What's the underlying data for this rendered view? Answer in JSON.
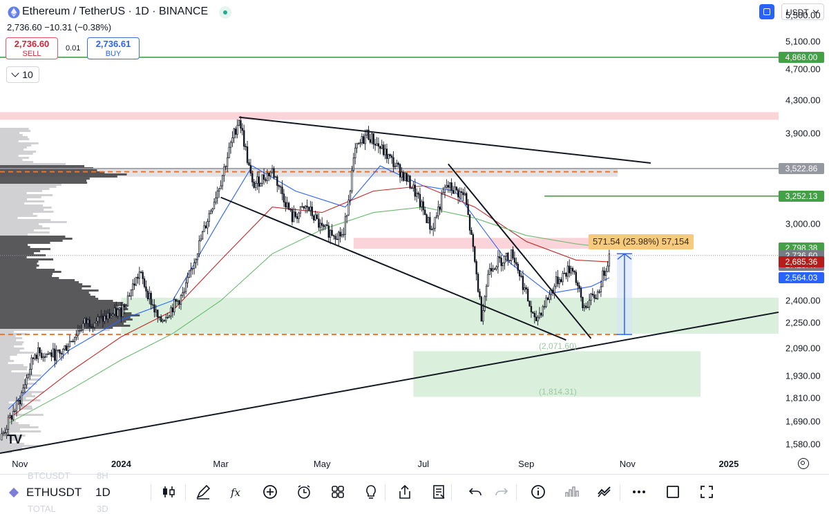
{
  "header": {
    "symbol_title": "Ethereum / TetherUS · 1D · BINANCE",
    "change": "2,736.60  −10.31 (−0.38%)",
    "sell_price": "2,736.60",
    "sell_label": "SELL",
    "spread": "0.01",
    "buy_price": "2,736.61",
    "buy_label": "BUY",
    "indicator_count": "10",
    "currency": "USDT"
  },
  "colors": {
    "green_line": "#43a047",
    "gray_line": "#9598a1",
    "orange_dashed": "#e8762c",
    "price_up": "#26a69a",
    "current_price": "#787b86",
    "ema_red": "#c62828",
    "ema_blue": "#2962ff",
    "sma_green": "#66bb6a"
  },
  "chart_data": {
    "type": "candlestick",
    "symbol": "ETHUSDT",
    "interval": "1D",
    "exchange": "BINANCE",
    "y_axis": {
      "scale": "log",
      "range": [
        1540,
        5750
      ],
      "ticks": [
        5500,
        5100,
        4700,
        4300,
        3900,
        3522.86,
        3000,
        2400,
        2250,
        2090,
        1930,
        1810,
        1690,
        1580
      ],
      "tick_labels": [
        "5,500.00",
        "5,100.00",
        "4,700.00",
        "4,300.00",
        "3,900.00",
        "",
        "3,000.00",
        "2,400.00",
        "2,250.00",
        "2,090.00",
        "1,930.00",
        "1,810.00",
        "1,690.00",
        "1,580.00"
      ]
    },
    "x_axis": {
      "range": [
        "2023-10-20",
        "2025-01-31"
      ],
      "ticks": [
        {
          "date": "2023-11-01",
          "label": "Nov",
          "bold": false
        },
        {
          "date": "2024-01-01",
          "label": "2024",
          "bold": true
        },
        {
          "date": "2024-03-01",
          "label": "Mar",
          "bold": false
        },
        {
          "date": "2024-05-01",
          "label": "May",
          "bold": false
        },
        {
          "date": "2024-07-01",
          "label": "Jul",
          "bold": false
        },
        {
          "date": "2024-09-01",
          "label": "Sep",
          "bold": false
        },
        {
          "date": "2024-11-01",
          "label": "Nov",
          "bold": false
        },
        {
          "date": "2025-01-01",
          "label": "2025",
          "bold": true
        }
      ]
    },
    "price_path": [
      [
        "2023-10-20",
        1600
      ],
      [
        "2023-11-01",
        1800
      ],
      [
        "2023-11-10",
        2060
      ],
      [
        "2023-11-25",
        2050
      ],
      [
        "2023-12-10",
        2250
      ],
      [
        "2023-12-20",
        2270
      ],
      [
        "2024-01-01",
        2330
      ],
      [
        "2024-01-12",
        2600
      ],
      [
        "2024-01-24",
        2250
      ],
      [
        "2024-02-08",
        2450
      ],
      [
        "2024-02-20",
        2950
      ],
      [
        "2024-03-01",
        3400
      ],
      [
        "2024-03-12",
        4080
      ],
      [
        "2024-03-20",
        3350
      ],
      [
        "2024-04-01",
        3500
      ],
      [
        "2024-04-13",
        3050
      ],
      [
        "2024-04-22",
        3150
      ],
      [
        "2024-05-01",
        2950
      ],
      [
        "2024-05-14",
        2900
      ],
      [
        "2024-05-21",
        3700
      ],
      [
        "2024-05-28",
        3900
      ],
      [
        "2024-06-12",
        3600
      ],
      [
        "2024-06-24",
        3350
      ],
      [
        "2024-07-06",
        2950
      ],
      [
        "2024-07-15",
        3350
      ],
      [
        "2024-07-26",
        3250
      ],
      [
        "2024-08-05",
        2300
      ],
      [
        "2024-08-10",
        2650
      ],
      [
        "2024-08-24",
        2750
      ],
      [
        "2024-09-06",
        2250
      ],
      [
        "2024-09-20",
        2550
      ],
      [
        "2024-09-29",
        2650
      ],
      [
        "2024-10-05",
        2350
      ],
      [
        "2024-10-14",
        2450
      ],
      [
        "2024-10-21",
        2736.6
      ]
    ],
    "indicators": [
      {
        "type": "ema",
        "color": "#2962ff",
        "points": [
          [
            "2023-10-25",
            1750
          ],
          [
            "2023-12-01",
            2080
          ],
          [
            "2024-01-01",
            2270
          ],
          [
            "2024-02-01",
            2400
          ],
          [
            "2024-03-01",
            3050
          ],
          [
            "2024-03-20",
            3550
          ],
          [
            "2024-04-15",
            3300
          ],
          [
            "2024-05-15",
            3150
          ],
          [
            "2024-06-05",
            3550
          ],
          [
            "2024-07-01",
            3350
          ],
          [
            "2024-07-20",
            3300
          ],
          [
            "2024-08-20",
            2700
          ],
          [
            "2024-09-15",
            2450
          ],
          [
            "2024-10-10",
            2500
          ],
          [
            "2024-10-21",
            2564.03
          ]
        ]
      },
      {
        "type": "ema",
        "color": "#c62828",
        "points": [
          [
            "2023-10-25",
            1700
          ],
          [
            "2023-12-01",
            1950
          ],
          [
            "2024-01-01",
            2160
          ],
          [
            "2024-02-01",
            2330
          ],
          [
            "2024-03-01",
            2700
          ],
          [
            "2024-04-01",
            3150
          ],
          [
            "2024-05-01",
            3100
          ],
          [
            "2024-06-01",
            3300
          ],
          [
            "2024-07-01",
            3350
          ],
          [
            "2024-08-01",
            3150
          ],
          [
            "2024-09-01",
            2850
          ],
          [
            "2024-10-01",
            2700
          ],
          [
            "2024-10-21",
            2685.36
          ]
        ]
      },
      {
        "type": "sma",
        "color": "#66bb6a",
        "points": [
          [
            "2023-10-25",
            1680
          ],
          [
            "2023-12-01",
            1850
          ],
          [
            "2024-01-01",
            2020
          ],
          [
            "2024-02-01",
            2180
          ],
          [
            "2024-03-01",
            2400
          ],
          [
            "2024-04-01",
            2750
          ],
          [
            "2024-05-01",
            2950
          ],
          [
            "2024-06-01",
            3100
          ],
          [
            "2024-07-01",
            3150
          ],
          [
            "2024-08-01",
            3050
          ],
          [
            "2024-09-01",
            2900
          ],
          [
            "2024-10-01",
            2830
          ],
          [
            "2024-10-21",
            2798.38
          ]
        ]
      }
    ],
    "horizontal_lines": [
      {
        "price": 4868.0,
        "label": "4,868.00",
        "color": "#43a047",
        "start": "2023-10-20"
      },
      {
        "price": 3522.86,
        "label": "3,522.86",
        "color": "#9598a1",
        "start": "2023-10-20"
      },
      {
        "price": 3252.13,
        "label": "3,252.13",
        "color": "#43a047",
        "start": "2024-09-12"
      }
    ],
    "dashed_lines": [
      {
        "price": 3490,
        "color": "#e8762c",
        "from": "2023-10-20",
        "to": "2024-10-26"
      },
      {
        "price": 2175,
        "color": "#e8762c",
        "from": "2023-10-20",
        "to": "2024-10-26"
      }
    ],
    "zones": [
      {
        "from": "2023-10-20",
        "to": "2025-01-31",
        "high": 4150,
        "low": 4060,
        "color": "#f8c5cc"
      },
      {
        "from": "2023-10-20",
        "to": "2024-10-26",
        "high": 3520,
        "low": 3440,
        "color": "#d8d8dc"
      },
      {
        "from": "2024-05-20",
        "to": "2024-10-26",
        "high": 2880,
        "low": 2790,
        "color": "#f8c5cc"
      },
      {
        "from": "2024-01-01",
        "to": "2025-01-31",
        "high": 2420,
        "low": 2180,
        "color": "#cdebd0"
      },
      {
        "from": "2024-06-25",
        "to": "2024-12-15",
        "high": 2071.6,
        "low": 1814.31,
        "color": "#cdebd0"
      }
    ],
    "trendlines": [
      {
        "from": [
          "2024-03-12",
          4090
        ],
        "to": [
          "2024-11-15",
          3580
        ]
      },
      {
        "from": [
          "2024-03-01",
          3240
        ],
        "to": [
          "2024-09-25",
          2140
        ]
      },
      {
        "from": [
          "2024-07-16",
          3570
        ],
        "to": [
          "2024-10-10",
          2150
        ]
      },
      {
        "from": [
          "2023-10-20",
          1540
        ],
        "to": [
          "2025-01-31",
          2320
        ]
      }
    ],
    "measure": {
      "from": [
        "2024-10-26",
        2175
      ],
      "to": [
        "2024-10-26",
        2750
      ],
      "label": "571.54 (25.98%) 57,154"
    },
    "annotations": [
      {
        "date": "2024-09-20",
        "price": 2071.6,
        "text": "(2,071.60)"
      },
      {
        "date": "2024-09-20",
        "price": 1814.31,
        "text": "(1,814.31)"
      }
    ],
    "price_labels": [
      {
        "price": 4868.0,
        "text": "4,868.00",
        "color": "#43a047"
      },
      {
        "price": 3522.86,
        "text": "3,522.86",
        "color": "#9598a1"
      },
      {
        "price": 3252.13,
        "text": "3,252.13",
        "color": "#43a047"
      },
      {
        "price": 2798.38,
        "text": "2,798.38",
        "color": "#43a047"
      },
      {
        "price": 2736.6,
        "text": "2,736.60",
        "countdown": "17:29:47",
        "color": "#787b86"
      },
      {
        "price": 2685.36,
        "text": "2,685.36",
        "color": "#b71c1c"
      },
      {
        "price": 2564.03,
        "text": "2,564.03",
        "color": "#2962ff"
      }
    ]
  },
  "toolbar": {
    "symbol": "ETHUSDT",
    "interval": "1D",
    "ghost_top_symbol": "BTCUSDT",
    "ghost_top_interval": "8H",
    "ghost_bottom_symbol": "TOTAL",
    "ghost_bottom_interval": "3D",
    "icons": [
      "candles-icon",
      "draw-icon",
      "fx-icon",
      "add-icon",
      "alert-icon",
      "layout-icon",
      "idea-icon",
      "share-icon",
      "watchlist-icon",
      "undo-icon",
      "redo-icon",
      "info-icon",
      "volume-icon",
      "compare-icon",
      "more-icon",
      "fullscreen-square-icon",
      "expand-icon"
    ]
  }
}
